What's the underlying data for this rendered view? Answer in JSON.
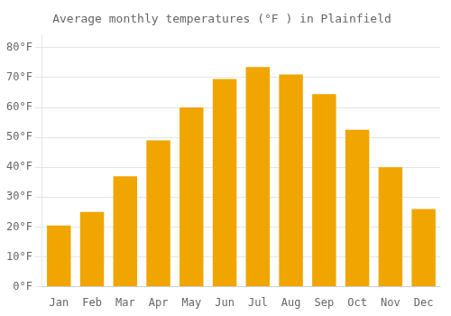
{
  "chart_data": {
    "type": "bar",
    "title": "Average monthly temperatures (°F ) in Plainfield",
    "categories": [
      "Jan",
      "Feb",
      "Mar",
      "Apr",
      "May",
      "Jun",
      "Jul",
      "Aug",
      "Sep",
      "Oct",
      "Nov",
      "Dec"
    ],
    "values": [
      20.5,
      25.0,
      37.0,
      49.0,
      60.0,
      69.5,
      73.5,
      71.0,
      64.5,
      52.5,
      40.0,
      26.0
    ],
    "color": "#F0A500",
    "ylim": [
      0,
      84
    ],
    "yticks": [
      {
        "value": 0,
        "label": "0°F"
      },
      {
        "value": 10,
        "label": "10°F"
      },
      {
        "value": 20,
        "label": "20°F"
      },
      {
        "value": 30,
        "label": "30°F"
      },
      {
        "value": 40,
        "label": "40°F"
      },
      {
        "value": 50,
        "label": "50°F"
      },
      {
        "value": 60,
        "label": "60°F"
      },
      {
        "value": 70,
        "label": "70°F"
      },
      {
        "value": 80,
        "label": "80°F"
      }
    ],
    "grid": true
  }
}
